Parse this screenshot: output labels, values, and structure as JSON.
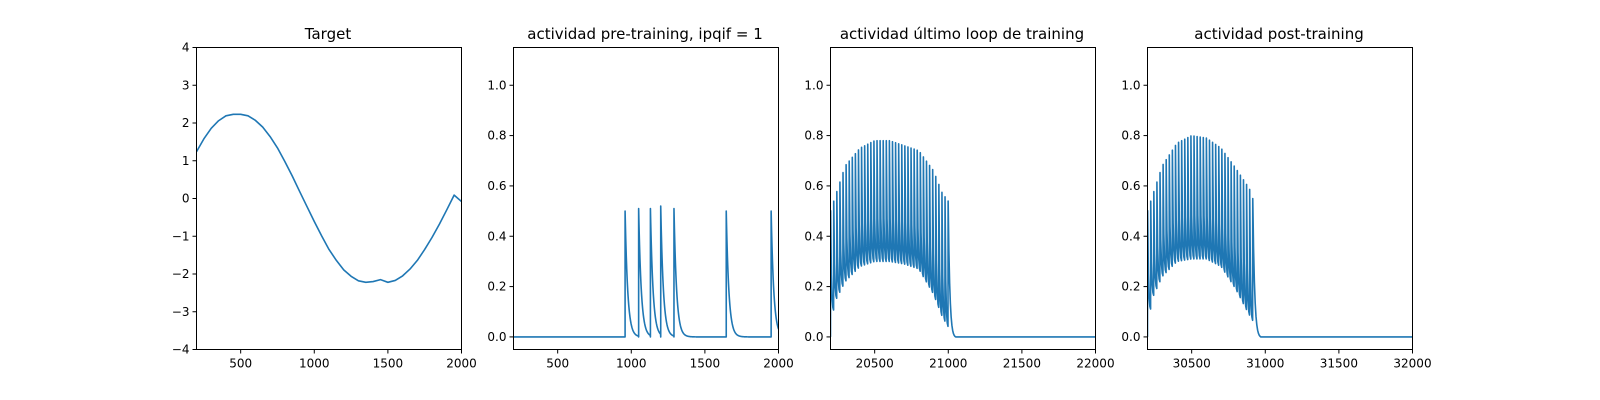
{
  "chart_data": [
    {
      "type": "line",
      "title": "Target",
      "xlabel": "",
      "ylabel": "",
      "xlim": [
        200,
        2000
      ],
      "ylim": [
        -4,
        4
      ],
      "xticks": [
        500,
        1000,
        1500,
        2000
      ],
      "xtick_labels": [
        "500",
        "1000",
        "1500",
        "2000"
      ],
      "yticks": [
        -4,
        -3,
        -2,
        -1,
        0,
        1,
        2,
        3,
        4
      ],
      "ytick_labels": [
        "−4",
        "−3",
        "−2",
        "−1",
        "0",
        "1",
        "2",
        "3",
        "4"
      ],
      "grid": false,
      "color": "#1f77b4",
      "series": [
        {
          "x": [
            200,
            250,
            300,
            350,
            400,
            450,
            500,
            550,
            600,
            650,
            700,
            750,
            800,
            850,
            900,
            950,
            1000,
            1050,
            1100,
            1150,
            1200,
            1250,
            1300,
            1350,
            1400,
            1450,
            1500,
            1550,
            1600,
            1650,
            1700,
            1750,
            1800,
            1850,
            1900,
            1950,
            2000
          ],
          "y": [
            1.24,
            1.58,
            1.86,
            2.06,
            2.19,
            2.23,
            2.23,
            2.19,
            2.07,
            1.89,
            1.64,
            1.34,
            0.98,
            0.6,
            0.19,
            -0.21,
            -0.61,
            -0.99,
            -1.35,
            -1.64,
            -1.89,
            -2.06,
            -2.18,
            -2.22,
            -2.2,
            -2.15,
            -2.22,
            -2.17,
            -2.05,
            -1.87,
            -1.64,
            -1.35,
            -1.03,
            -0.68,
            -0.3,
            0.09,
            -0.08
          ]
        }
      ]
    },
    {
      "type": "line",
      "title": "actividad pre-training, ipqif = 1",
      "xlabel": "",
      "ylabel": "",
      "xlim": [
        200,
        2000
      ],
      "ylim": [
        -0.05,
        1.15
      ],
      "xticks": [
        500,
        1000,
        1500,
        2000
      ],
      "xtick_labels": [
        "500",
        "1000",
        "1500",
        "2000"
      ],
      "yticks": [
        0.0,
        0.2,
        0.4,
        0.6,
        0.8,
        1.0
      ],
      "ytick_labels": [
        "0.0",
        "0.2",
        "0.4",
        "0.6",
        "0.8",
        "1.0"
      ],
      "grid": false,
      "color": "#1f77b4",
      "spike_times": [
        958,
        1050,
        1130,
        1200,
        1290,
        1645,
        1950
      ],
      "spike_peaks": [
        0.5,
        0.51,
        0.51,
        0.52,
        0.51,
        0.5,
        0.5
      ]
    },
    {
      "type": "line",
      "title": "actividad último loop de training",
      "xlabel": "",
      "ylabel": "",
      "xlim": [
        20200,
        22000
      ],
      "ylim": [
        -0.05,
        1.15
      ],
      "xticks": [
        20500,
        21000,
        21500,
        22000
      ],
      "xtick_labels": [
        "20500",
        "21000",
        "21500",
        "22000"
      ],
      "yticks": [
        0.0,
        0.2,
        0.4,
        0.6,
        0.8,
        1.0
      ],
      "ytick_labels": [
        "0.0",
        "0.2",
        "0.4",
        "0.6",
        "0.8",
        "1.0"
      ],
      "grid": false,
      "color": "#1f77b4",
      "osc_start": 20200,
      "osc_end": 21010,
      "osc_period": 21,
      "peak_envelope": [
        [
          20200,
          0.5
        ],
        [
          20300,
          0.68
        ],
        [
          20400,
          0.75
        ],
        [
          20500,
          0.78
        ],
        [
          20600,
          0.78
        ],
        [
          20700,
          0.76
        ],
        [
          20800,
          0.74
        ],
        [
          20900,
          0.66
        ],
        [
          20960,
          0.57
        ],
        [
          21000,
          0.54
        ]
      ],
      "trough_envelope": [
        [
          20200,
          0.03
        ],
        [
          20230,
          0.14
        ],
        [
          20300,
          0.22
        ],
        [
          20400,
          0.28
        ],
        [
          20500,
          0.3
        ],
        [
          20600,
          0.3
        ],
        [
          20700,
          0.29
        ],
        [
          20800,
          0.27
        ],
        [
          20900,
          0.17
        ],
        [
          20960,
          0.08
        ],
        [
          21000,
          0.04
        ]
      ],
      "decay_end": 21050
    },
    {
      "type": "line",
      "title": "actividad post-training",
      "xlabel": "",
      "ylabel": "",
      "xlim": [
        30200,
        32000
      ],
      "ylim": [
        -0.05,
        1.15
      ],
      "xticks": [
        30500,
        31000,
        31500,
        32000
      ],
      "xtick_labels": [
        "30500",
        "31000",
        "31500",
        "32000"
      ],
      "yticks": [
        0.0,
        0.2,
        0.4,
        0.6,
        0.8,
        1.0
      ],
      "ytick_labels": [
        "0.0",
        "0.2",
        "0.4",
        "0.6",
        "0.8",
        "1.0"
      ],
      "grid": false,
      "color": "#1f77b4",
      "osc_start": 30200,
      "osc_end": 30930,
      "osc_period": 21,
      "peak_envelope": [
        [
          30200,
          0.5
        ],
        [
          30300,
          0.68
        ],
        [
          30400,
          0.77
        ],
        [
          30500,
          0.8
        ],
        [
          30600,
          0.79
        ],
        [
          30700,
          0.75
        ],
        [
          30800,
          0.67
        ],
        [
          30880,
          0.6
        ],
        [
          30930,
          0.55
        ]
      ],
      "trough_envelope": [
        [
          30200,
          0.02
        ],
        [
          30230,
          0.15
        ],
        [
          30300,
          0.24
        ],
        [
          30400,
          0.3
        ],
        [
          30500,
          0.31
        ],
        [
          30600,
          0.31
        ],
        [
          30700,
          0.28
        ],
        [
          30800,
          0.19
        ],
        [
          30880,
          0.1
        ],
        [
          30930,
          0.05
        ]
      ],
      "decay_end": 30970
    }
  ]
}
